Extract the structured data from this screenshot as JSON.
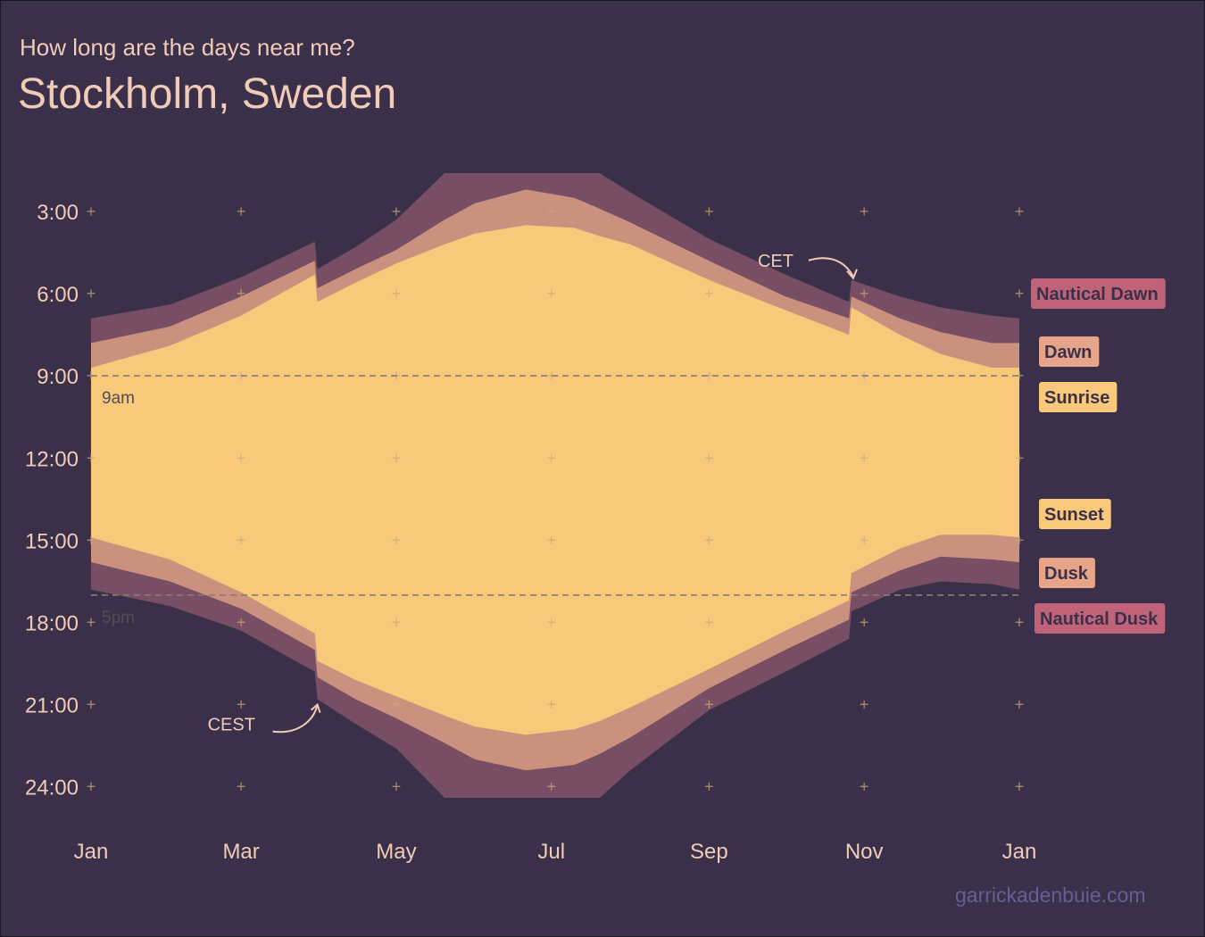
{
  "page": {
    "subtitle": "How long are the days near me?",
    "title": "Stockholm, Sweden",
    "credit": "garrickadenbuie.com"
  },
  "colors": {
    "background": "#3a3049",
    "night": "#3a3049",
    "nautical": "#774e63",
    "twilight": "#c9917e",
    "day": "#f8c97a",
    "text": "#f2cbb8",
    "grid_marker": "#c9a97a",
    "label_nautical_dawn": "#c16378",
    "label_dawn": "#e6a589",
    "label_sunrise": "#f8c97a",
    "label_sunset": "#f8c97a",
    "label_dusk": "#e6a589",
    "label_nautical_dusk": "#c16378",
    "label_text": "#3a3049",
    "credit": "#6a5d95"
  },
  "chart_data": {
    "type": "area",
    "x_unit": "date",
    "y_unit": "hour of day",
    "ylim": [
      1.2,
      25.5
    ],
    "y_reversed": true,
    "y_ticks": [
      3,
      6,
      9,
      12,
      15,
      18,
      21,
      24
    ],
    "y_tick_labels": [
      "3:00",
      "6:00",
      "9:00",
      "12:00",
      "15:00",
      "18:00",
      "21:00",
      "24:00"
    ],
    "x_ticks": [
      "2019-01-01",
      "2019-03-01",
      "2019-05-01",
      "2019-07-01",
      "2019-09-01",
      "2019-11-01",
      "2020-01-01"
    ],
    "x_tick_labels": [
      "Jan",
      "Mar",
      "May",
      "Jul",
      "Sep",
      "Nov",
      "Jan"
    ],
    "grid": "plus markers",
    "dates": [
      "2019-01-01",
      "2019-02-01",
      "2019-03-01",
      "2019-03-30",
      "2019-03-31",
      "2019-04-15",
      "2019-05-01",
      "2019-05-20",
      "2019-06-01",
      "2019-06-21",
      "2019-07-10",
      "2019-07-20",
      "2019-08-01",
      "2019-09-01",
      "2019-10-01",
      "2019-10-26",
      "2019-10-27",
      "2019-11-15",
      "2019-12-01",
      "2019-12-21",
      "2020-01-01"
    ],
    "series": [
      {
        "name": "Nautical Dawn",
        "values": [
          6.9,
          6.4,
          5.4,
          4.1,
          5.1,
          4.3,
          3.3,
          1.6,
          1.6,
          1.6,
          1.6,
          1.6,
          2.3,
          4.0,
          5.3,
          6.3,
          5.5,
          6.1,
          6.5,
          6.8,
          6.9
        ]
      },
      {
        "name": "Dawn",
        "values": [
          7.8,
          7.2,
          6.1,
          4.8,
          5.8,
          5.1,
          4.4,
          3.3,
          2.7,
          2.2,
          2.5,
          2.9,
          3.4,
          4.8,
          6.1,
          6.9,
          6.1,
          6.9,
          7.4,
          7.8,
          7.8
        ]
      },
      {
        "name": "Sunrise",
        "values": [
          8.7,
          7.9,
          6.8,
          5.3,
          6.3,
          5.6,
          4.9,
          4.2,
          3.8,
          3.5,
          3.6,
          3.9,
          4.2,
          5.5,
          6.6,
          7.5,
          6.5,
          7.5,
          8.2,
          8.7,
          8.7
        ]
      },
      {
        "name": "Sunset",
        "values": [
          14.9,
          15.7,
          16.9,
          18.4,
          19.4,
          20.1,
          20.7,
          21.4,
          21.8,
          22.1,
          21.9,
          21.6,
          21.1,
          19.7,
          18.3,
          17.2,
          16.2,
          15.3,
          14.8,
          14.8,
          14.9
        ]
      },
      {
        "name": "Dusk",
        "values": [
          15.8,
          16.5,
          17.5,
          19.0,
          20.0,
          20.8,
          21.5,
          22.4,
          23.0,
          23.4,
          23.2,
          22.8,
          22.2,
          20.4,
          19.0,
          17.9,
          16.9,
          16.1,
          15.6,
          15.7,
          15.8
        ]
      },
      {
        "name": "Nautical Dusk",
        "values": [
          16.8,
          17.4,
          18.3,
          19.8,
          20.8,
          21.7,
          22.6,
          24.4,
          24.4,
          24.4,
          24.4,
          24.4,
          23.4,
          21.2,
          19.8,
          18.6,
          17.6,
          16.8,
          16.5,
          16.6,
          16.8
        ]
      }
    ],
    "reference_lines": [
      {
        "y": 9,
        "label": "9am"
      },
      {
        "y": 17,
        "label": "5pm"
      }
    ],
    "annotations": [
      {
        "text": "CET",
        "x": "2019-10-27",
        "y": 5.5
      },
      {
        "text": "CEST",
        "x": "2019-03-31",
        "y": 21.0
      }
    ]
  }
}
